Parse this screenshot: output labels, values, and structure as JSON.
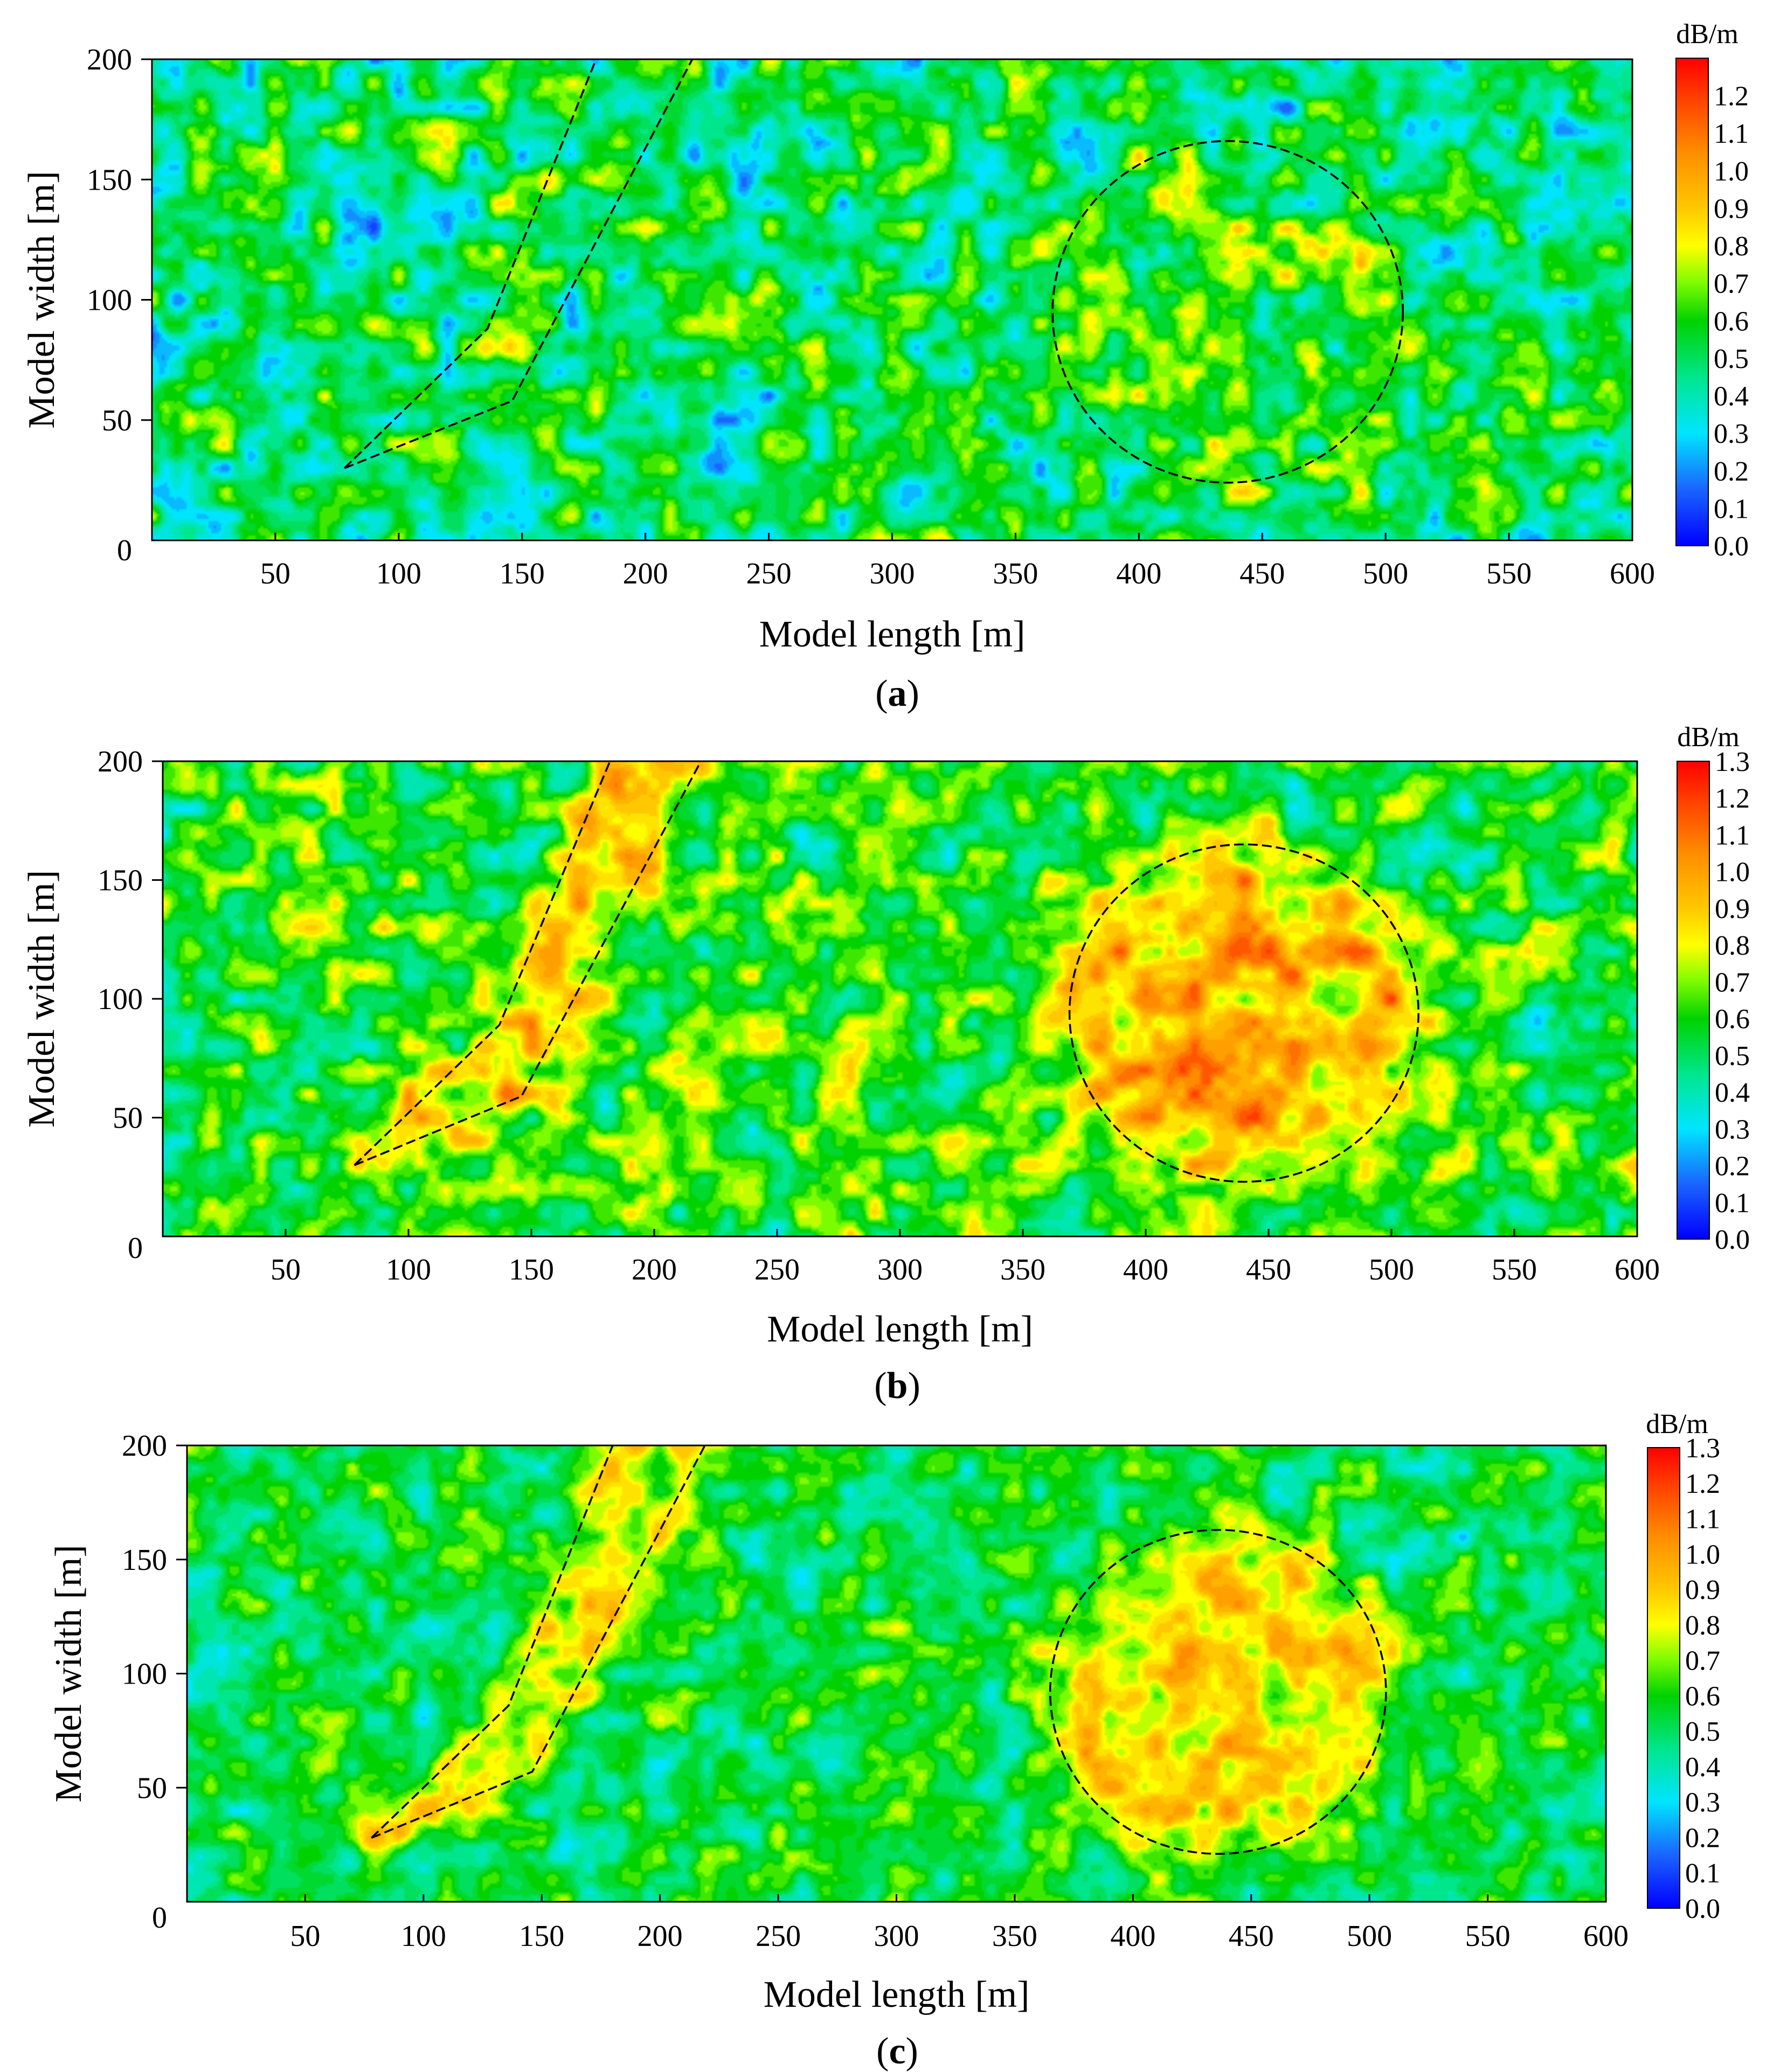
{
  "panel_labels": [
    "(a)",
    "(b)",
    "(c)"
  ],
  "colorscale": {
    "stops": [
      {
        "v": 0.0,
        "c": "#0000ff"
      },
      {
        "v": 0.15,
        "c": "#1a64ff"
      },
      {
        "v": 0.3,
        "c": "#00e5ff"
      },
      {
        "v": 0.45,
        "c": "#00e68c"
      },
      {
        "v": 0.6,
        "c": "#00d200"
      },
      {
        "v": 0.7,
        "c": "#7cfc00"
      },
      {
        "v": 0.8,
        "c": "#ffff00"
      },
      {
        "v": 0.9,
        "c": "#ffc800"
      },
      {
        "v": 1.05,
        "c": "#ff8c00"
      },
      {
        "v": 1.2,
        "c": "#ff3c00"
      },
      {
        "v": 1.3,
        "c": "#ff0000"
      }
    ]
  },
  "chart_data": [
    {
      "type": "heatmap",
      "panel": "(a)",
      "xlabel": "Model length [m]",
      "ylabel": "Model width [m]",
      "xlim": [
        0,
        600
      ],
      "ylim": [
        0,
        200
      ],
      "xticks": [
        50,
        100,
        150,
        200,
        250,
        300,
        350,
        400,
        450,
        500,
        550,
        600
      ],
      "yticks": [
        0,
        50,
        100,
        150,
        200
      ],
      "colorbar": {
        "unit": "dB/m",
        "ticks": [
          "0.0",
          "0.1",
          "0.2",
          "0.3",
          "0.4",
          "0.5",
          "0.6",
          "0.7",
          "0.8",
          "0.9",
          "1.0",
          "1.1",
          "1.2"
        ],
        "max": 1.3
      },
      "field": {
        "base": 0.5,
        "noise_amp": 0.38,
        "fault_boost": 0.05,
        "circle_boost": 0.12,
        "seed": 11
      },
      "annotations": {
        "fault_lines": [
          [
            [
              78,
              30
            ],
            [
              136,
              88
            ],
            [
              180,
              200
            ]
          ],
          [
            [
              78,
              30
            ],
            [
              146,
              58
            ],
            [
              219,
              200
            ]
          ]
        ],
        "circle": {
          "cx": 436,
          "cy": 95,
          "r": 71
        }
      }
    },
    {
      "type": "heatmap",
      "panel": "(b)",
      "xlabel": "Model length [m]",
      "ylabel": "Model width [m]",
      "xlim": [
        0,
        600
      ],
      "ylim": [
        0,
        200
      ],
      "xticks": [
        50,
        100,
        150,
        200,
        250,
        300,
        350,
        400,
        450,
        500,
        550,
        600
      ],
      "yticks": [
        0,
        50,
        100,
        150,
        200
      ],
      "colorbar": {
        "unit": "dB/m",
        "ticks": [
          "0.0",
          "0.1",
          "0.2",
          "0.3",
          "0.4",
          "0.5",
          "0.6",
          "0.7",
          "0.8",
          "0.9",
          "1.0",
          "1.1",
          "1.2",
          "1.3"
        ],
        "max": 1.3
      },
      "field": {
        "base": 0.6,
        "noise_amp": 0.33,
        "fault_boost": 0.22,
        "circle_boost": 0.32,
        "seed": 29
      },
      "annotations": {
        "fault_lines": [
          [
            [
              78,
              30
            ],
            [
              137,
              89
            ],
            [
              182,
              200
            ]
          ],
          [
            [
              78,
              30
            ],
            [
              146,
              59
            ],
            [
              219,
              200
            ]
          ]
        ],
        "circle": {
          "cx": 440,
          "cy": 94,
          "r": 71
        }
      }
    },
    {
      "type": "heatmap",
      "panel": "(c)",
      "xlabel": "Model length [m]",
      "ylabel": "Model width [m]",
      "xlim": [
        0,
        600
      ],
      "ylim": [
        0,
        200
      ],
      "xticks": [
        50,
        100,
        150,
        200,
        250,
        300,
        350,
        400,
        450,
        500,
        550,
        600
      ],
      "yticks": [
        0,
        50,
        100,
        150,
        200
      ],
      "colorbar": {
        "unit": "dB/m",
        "ticks": [
          "0.0",
          "0.1",
          "0.2",
          "0.3",
          "0.4",
          "0.5",
          "0.6",
          "0.7",
          "0.8",
          "0.9",
          "1.0",
          "1.1",
          "1.2",
          "1.3"
        ],
        "max": 1.3
      },
      "field": {
        "base": 0.53,
        "noise_amp": 0.27,
        "fault_boost": 0.26,
        "circle_boost": 0.33,
        "seed": 47
      },
      "annotations": {
        "fault_lines": [
          [
            [
              78,
              28
            ],
            [
              136,
              86
            ],
            [
              180,
              200
            ]
          ],
          [
            [
              78,
              28
            ],
            [
              146,
              57
            ],
            [
              219,
              200
            ]
          ]
        ],
        "circle": {
          "cx": 436,
          "cy": 92,
          "r": 71
        }
      }
    }
  ]
}
